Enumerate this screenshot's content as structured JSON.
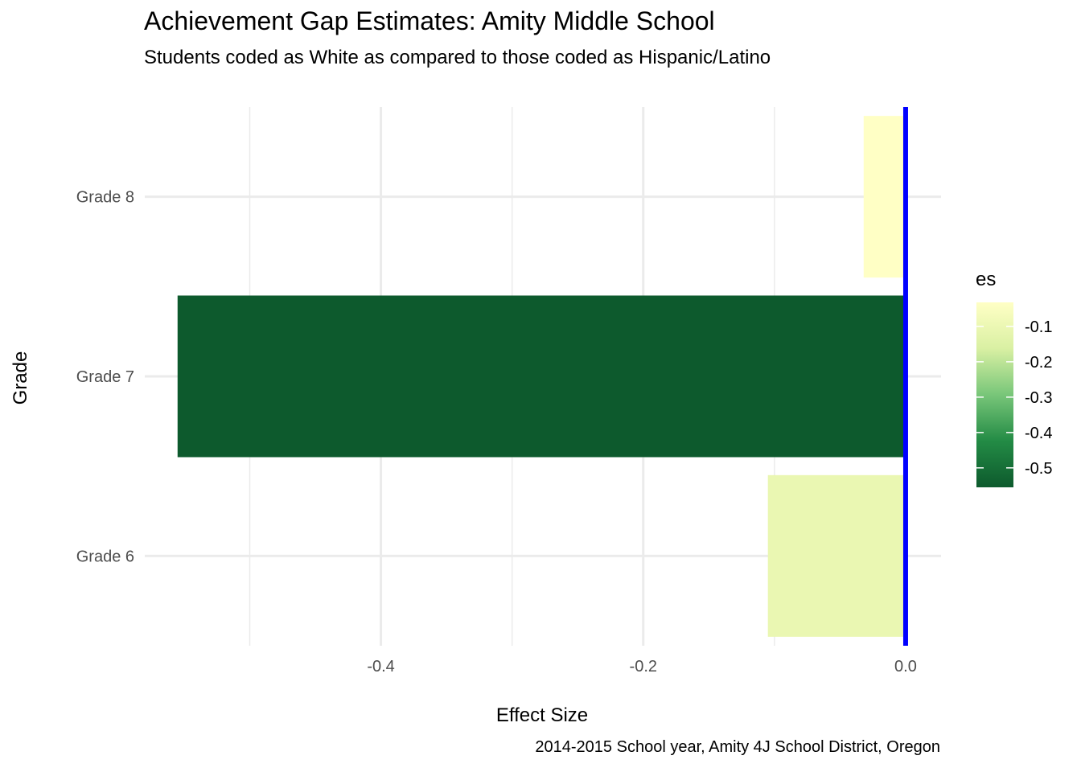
{
  "title": "Achievement Gap Estimates: Amity Middle School",
  "subtitle": "Students coded as White as compared to those coded as Hispanic/Latino",
  "caption": "2014-2015 School year, Amity  4J School District, Oregon",
  "chart_data": {
    "type": "bar",
    "orientation": "horizontal",
    "categories": [
      "Grade 6",
      "Grade 7",
      "Grade 8"
    ],
    "series": [
      {
        "values": [
          -0.105,
          -0.555,
          -0.032
        ]
      }
    ],
    "xlabel": "Effect Size",
    "ylabel": "Grade",
    "xlim": [
      -0.58,
      0.027
    ],
    "x_ticks": [
      "-0.4",
      "-0.2",
      "0.0"
    ],
    "x_tick_values": [
      -0.4,
      -0.2,
      0.0
    ],
    "reference_line": {
      "x": 0.0,
      "color": "#0000ff"
    },
    "grid": true,
    "legend": {
      "title": "es",
      "placement": "right",
      "type": "colorbar",
      "range": [
        -0.555,
        -0.032
      ],
      "tick_values": [
        -0.1,
        -0.2,
        -0.3,
        -0.4,
        -0.5
      ],
      "tick_labels": [
        "-0.1",
        "-0.2",
        "-0.3",
        "-0.4",
        "-0.5"
      ],
      "colors": [
        "#0d5a2d",
        "#238b45",
        "#78c679",
        "#d9f0a3",
        "#ffffc5"
      ]
    }
  }
}
